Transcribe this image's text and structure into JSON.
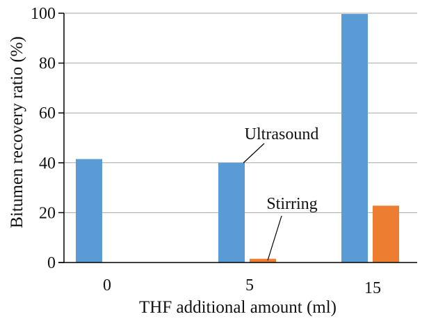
{
  "chart_data": {
    "type": "bar",
    "xlabel": "THF additional amount (ml)",
    "ylabel": "Bitumen recovery ratio (%)",
    "categories": [
      "0",
      "5",
      "15"
    ],
    "ylim": [
      0,
      100
    ],
    "yticks": [
      0,
      20,
      40,
      60,
      80,
      100
    ],
    "grid": true,
    "legend": "none",
    "series": [
      {
        "name": "Ultrasound",
        "color": "#5b9bd5",
        "values": [
          41.5,
          40,
          99.7
        ]
      },
      {
        "name": "Stirring",
        "color": "#ed7d31",
        "values": [
          null,
          1.5,
          22.8
        ]
      }
    ],
    "annotations": [
      {
        "text": "Ultrasound",
        "target_series": 0,
        "target_category": 1
      },
      {
        "text": "Stirring",
        "target_series": 1,
        "target_category": 1
      }
    ]
  }
}
